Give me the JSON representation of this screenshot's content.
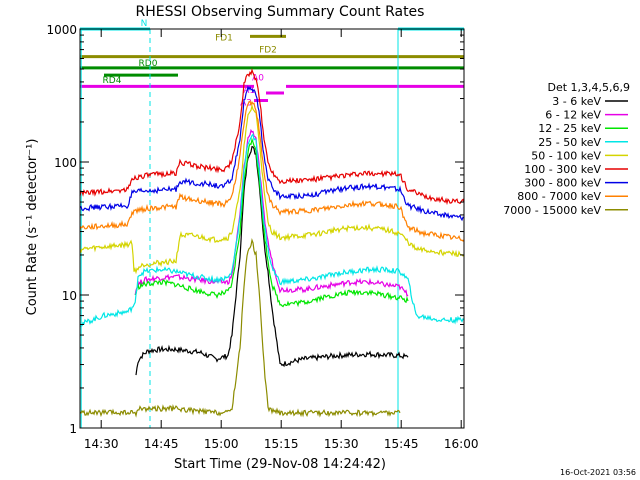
{
  "chart_data": {
    "type": "line",
    "title": "RHESSI Observing Summary Count Rates",
    "xlabel": "Start Time (29-Nov-08 14:24:42)",
    "ylabel": "Count Rate (s⁻¹ detector⁻¹)",
    "ylog": true,
    "ylim": [
      1,
      1000
    ],
    "xlim_min": [
      0,
      96
    ],
    "x_ticks": [
      {
        "t": 5.3,
        "label": "14:30"
      },
      {
        "t": 20.3,
        "label": "14:45"
      },
      {
        "t": 35.3,
        "label": "15:00"
      },
      {
        "t": 50.3,
        "label": "15:15"
      },
      {
        "t": 65.3,
        "label": "15:30"
      },
      {
        "t": 80.3,
        "label": "15:45"
      },
      {
        "t": 95.3,
        "label": "16:00"
      }
    ],
    "y_ticks": [
      {
        "v": 1,
        "label": "1"
      },
      {
        "v": 10,
        "label": "10"
      },
      {
        "v": 100,
        "label": "100"
      },
      {
        "v": 1000,
        "label": "1000"
      }
    ],
    "legend_title": "Det 1,3,4,5,6,9",
    "legend_position": "right",
    "series": [
      {
        "name": "3 - 6 keV",
        "color": "#000000",
        "points": [
          [
            14,
            2.5
          ],
          [
            14.5,
            3.2
          ],
          [
            15.5,
            3.5
          ],
          [
            17,
            3.8
          ],
          [
            20,
            3.9
          ],
          [
            24,
            3.9
          ],
          [
            30,
            3.7
          ],
          [
            34,
            3.3
          ],
          [
            37,
            3.5
          ],
          [
            38,
            5
          ],
          [
            40,
            20
          ],
          [
            41,
            60
          ],
          [
            42,
            110
          ],
          [
            43,
            130
          ],
          [
            44,
            115
          ],
          [
            45,
            60
          ],
          [
            46,
            25
          ],
          [
            47,
            15
          ],
          [
            48,
            8
          ],
          [
            50,
            3
          ],
          [
            56,
            3.3
          ],
          [
            64,
            3.5
          ],
          [
            72,
            3.6
          ],
          [
            80,
            3.5
          ],
          [
            82,
            3.4
          ]
        ]
      },
      {
        "name": "6 - 12 keV",
        "color": "#e600e6",
        "points": [
          [
            13.8,
            10.5
          ],
          [
            14.5,
            12
          ],
          [
            16,
            13
          ],
          [
            20,
            13.5
          ],
          [
            24,
            13.7
          ],
          [
            30,
            13
          ],
          [
            34,
            12.5
          ],
          [
            37,
            12.5
          ],
          [
            38,
            14
          ],
          [
            40,
            40
          ],
          [
            41,
            90
          ],
          [
            42,
            150
          ],
          [
            43,
            175
          ],
          [
            44,
            150
          ],
          [
            45,
            80
          ],
          [
            46,
            40
          ],
          [
            47,
            25
          ],
          [
            48,
            18
          ],
          [
            50,
            11
          ],
          [
            56,
            11
          ],
          [
            60,
            11.5
          ],
          [
            64,
            12
          ],
          [
            68,
            12.5
          ],
          [
            72,
            12.5
          ],
          [
            76,
            12
          ],
          [
            80,
            11.5
          ],
          [
            82,
            10
          ]
        ]
      },
      {
        "name": "12 - 25 keV",
        "color": "#00e600",
        "points": [
          [
            13.8,
            10
          ],
          [
            14.5,
            11.5
          ],
          [
            16,
            12
          ],
          [
            20,
            12.5
          ],
          [
            24,
            12
          ],
          [
            28,
            11
          ],
          [
            34,
            10
          ],
          [
            37,
            10.5
          ],
          [
            38,
            12
          ],
          [
            40,
            30
          ],
          [
            41,
            70
          ],
          [
            42,
            120
          ],
          [
            43,
            150
          ],
          [
            44,
            125
          ],
          [
            45,
            65
          ],
          [
            46,
            30
          ],
          [
            47,
            18
          ],
          [
            48,
            12
          ],
          [
            50,
            8.5
          ],
          [
            56,
            8.8
          ],
          [
            60,
            9.5
          ],
          [
            64,
            10
          ],
          [
            68,
            10.5
          ],
          [
            72,
            10.5
          ],
          [
            76,
            10
          ],
          [
            80,
            9.5
          ],
          [
            82,
            9
          ]
        ]
      },
      {
        "name": "25 - 50 keV",
        "color": "#00e6e6",
        "points": [
          [
            0,
            6
          ],
          [
            6,
            7
          ],
          [
            12,
            7.5
          ],
          [
            13.8,
            8.5
          ],
          [
            14.5,
            14
          ],
          [
            16,
            15
          ],
          [
            20,
            15.5
          ],
          [
            24,
            15
          ],
          [
            28,
            14
          ],
          [
            34,
            13
          ],
          [
            37,
            13.5
          ],
          [
            38,
            15
          ],
          [
            40,
            38
          ],
          [
            41,
            85
          ],
          [
            42,
            140
          ],
          [
            43,
            160
          ],
          [
            44,
            140
          ],
          [
            45,
            75
          ],
          [
            46,
            35
          ],
          [
            47,
            22
          ],
          [
            48,
            16
          ],
          [
            50,
            12.5
          ],
          [
            56,
            13
          ],
          [
            60,
            13.5
          ],
          [
            64,
            14.5
          ],
          [
            68,
            15
          ],
          [
            72,
            15.5
          ],
          [
            76,
            15.5
          ],
          [
            80,
            15
          ],
          [
            82,
            13
          ],
          [
            84,
            7
          ],
          [
            90,
            6.5
          ],
          [
            96,
            6.5
          ]
        ]
      },
      {
        "name": "50 - 100 keV",
        "color": "#d4d400",
        "points": [
          [
            0,
            22
          ],
          [
            6,
            23
          ],
          [
            12,
            24
          ],
          [
            13,
            25
          ],
          [
            13.5,
            15
          ],
          [
            14.5,
            16
          ],
          [
            16,
            17
          ],
          [
            20,
            17.5
          ],
          [
            24,
            18
          ],
          [
            25,
            28
          ],
          [
            28,
            28
          ],
          [
            34,
            26
          ],
          [
            37,
            27
          ],
          [
            38,
            30
          ],
          [
            40,
            60
          ],
          [
            41,
            130
          ],
          [
            42,
            220
          ],
          [
            43,
            260
          ],
          [
            44,
            230
          ],
          [
            45,
            130
          ],
          [
            46,
            60
          ],
          [
            47,
            35
          ],
          [
            48,
            30
          ],
          [
            50,
            27
          ],
          [
            56,
            28
          ],
          [
            60,
            29
          ],
          [
            64,
            31
          ],
          [
            68,
            32
          ],
          [
            72,
            32
          ],
          [
            76,
            31
          ],
          [
            80,
            29
          ],
          [
            82,
            25
          ],
          [
            84,
            22
          ],
          [
            90,
            21
          ],
          [
            96,
            20
          ]
        ]
      },
      {
        "name": "100 - 300 keV",
        "color": "#e60000",
        "points": [
          [
            0,
            58
          ],
          [
            6,
            60
          ],
          [
            12,
            62
          ],
          [
            13,
            75
          ],
          [
            15,
            78
          ],
          [
            18,
            80
          ],
          [
            22,
            82
          ],
          [
            24,
            82
          ],
          [
            25,
            100
          ],
          [
            28,
            95
          ],
          [
            32,
            90
          ],
          [
            36,
            88
          ],
          [
            38,
            100
          ],
          [
            40,
            200
          ],
          [
            41,
            380
          ],
          [
            42,
            460
          ],
          [
            43,
            470
          ],
          [
            44,
            420
          ],
          [
            45,
            280
          ],
          [
            46,
            150
          ],
          [
            47,
            100
          ],
          [
            48,
            85
          ],
          [
            50,
            72
          ],
          [
            56,
            73
          ],
          [
            60,
            75
          ],
          [
            64,
            78
          ],
          [
            68,
            80
          ],
          [
            72,
            82
          ],
          [
            76,
            82
          ],
          [
            80,
            80
          ],
          [
            82,
            62
          ],
          [
            86,
            55
          ],
          [
            90,
            52
          ],
          [
            96,
            50
          ]
        ]
      },
      {
        "name": "300 - 800 keV",
        "color": "#0000e6",
        "points": [
          [
            0,
            45
          ],
          [
            6,
            46
          ],
          [
            12,
            47
          ],
          [
            13,
            58
          ],
          [
            15,
            60
          ],
          [
            18,
            61
          ],
          [
            22,
            62
          ],
          [
            24,
            62
          ],
          [
            25,
            72
          ],
          [
            28,
            70
          ],
          [
            32,
            68
          ],
          [
            36,
            65
          ],
          [
            38,
            75
          ],
          [
            40,
            150
          ],
          [
            41,
            280
          ],
          [
            42,
            350
          ],
          [
            43,
            360
          ],
          [
            44,
            320
          ],
          [
            45,
            210
          ],
          [
            46,
            110
          ],
          [
            47,
            75
          ],
          [
            48,
            65
          ],
          [
            50,
            55
          ],
          [
            56,
            56
          ],
          [
            60,
            58
          ],
          [
            64,
            62
          ],
          [
            68,
            64
          ],
          [
            72,
            66
          ],
          [
            76,
            65
          ],
          [
            80,
            62
          ],
          [
            82,
            47
          ],
          [
            86,
            43
          ],
          [
            90,
            40
          ],
          [
            96,
            38
          ]
        ]
      },
      {
        "name": "800 - 7000 keV",
        "color": "#ff8000",
        "points": [
          [
            0,
            32
          ],
          [
            6,
            33
          ],
          [
            12,
            34
          ],
          [
            13,
            42
          ],
          [
            15,
            44
          ],
          [
            18,
            45
          ],
          [
            22,
            46
          ],
          [
            24,
            46
          ],
          [
            25,
            55
          ],
          [
            28,
            52
          ],
          [
            32,
            50
          ],
          [
            36,
            48
          ],
          [
            38,
            55
          ],
          [
            40,
            110
          ],
          [
            41,
            200
          ],
          [
            42,
            270
          ],
          [
            43,
            280
          ],
          [
            44,
            250
          ],
          [
            45,
            160
          ],
          [
            46,
            85
          ],
          [
            47,
            55
          ],
          [
            48,
            48
          ],
          [
            50,
            42
          ],
          [
            56,
            43
          ],
          [
            60,
            44
          ],
          [
            64,
            46
          ],
          [
            68,
            48
          ],
          [
            72,
            49
          ],
          [
            76,
            48
          ],
          [
            80,
            46
          ],
          [
            82,
            32
          ],
          [
            86,
            29
          ],
          [
            90,
            28
          ],
          [
            96,
            26
          ]
        ]
      },
      {
        "name": "7000 - 15000 keV",
        "color": "#8c8c00",
        "points": [
          [
            0,
            1.3
          ],
          [
            6,
            1.3
          ],
          [
            12,
            1.3
          ],
          [
            14,
            1.3
          ],
          [
            15,
            1.4
          ],
          [
            18,
            1.4
          ],
          [
            24,
            1.4
          ],
          [
            28,
            1.35
          ],
          [
            34,
            1.3
          ],
          [
            37,
            1.3
          ],
          [
            38,
            1.4
          ],
          [
            40,
            4
          ],
          [
            41,
            12
          ],
          [
            42,
            22
          ],
          [
            43,
            25
          ],
          [
            44,
            20
          ],
          [
            45,
            9
          ],
          [
            46,
            3
          ],
          [
            47,
            1.4
          ],
          [
            50,
            1.3
          ],
          [
            60,
            1.3
          ],
          [
            70,
            1.3
          ],
          [
            80,
            1.3
          ]
        ]
      }
    ],
    "attenuator_markers": [
      {
        "label": "A0",
        "t": 45.5
      },
      {
        "label": "A1",
        "t": 43.5
      },
      {
        "label": "A3",
        "t": 43.0
      }
    ],
    "flag_bars": [
      {
        "label": "N",
        "color": "#00e6e6",
        "segments": [
          [
            0,
            17.5
          ],
          [
            79.5,
            96
          ]
        ],
        "level": 1000
      },
      {
        "label": "FD1",
        "color": "#8c8c00",
        "segments": [
          [
            42.5,
            51.5
          ]
        ],
        "level": 880
      },
      {
        "label": "FD2",
        "color": "#8c8c00",
        "segments": [
          [
            0,
            96
          ]
        ],
        "level": 620
      },
      {
        "label": "RD0",
        "color": "#008c00",
        "segments": [
          [
            0,
            96
          ]
        ],
        "level": 510
      },
      {
        "label": "RD4",
        "color": "#008c00",
        "segments": [
          [
            6,
            24.5
          ]
        ],
        "level": 450
      },
      {
        "label": "A0",
        "color": "#e600e6",
        "segments": [
          [
            0,
            43.5
          ],
          [
            51.5,
            96
          ]
        ],
        "level": 370
      },
      {
        "label": "A1",
        "color": "#e600e6",
        "segments": [
          [
            46.5,
            51
          ]
        ],
        "level": 330
      },
      {
        "label": "A3",
        "color": "#e600e6",
        "segments": [
          [
            43.5,
            47
          ]
        ],
        "level": 290
      }
    ],
    "vlines": [
      {
        "t": 0.3,
        "color": "#00e6e6",
        "style": "solid"
      },
      {
        "t": 17.5,
        "color": "#00e6e6",
        "style": "dashed"
      },
      {
        "t": 79.5,
        "color": "#00e6e6",
        "style": "solid"
      },
      {
        "t": 96,
        "color": "#00e6e6",
        "style": "dashed"
      }
    ],
    "grid": false
  },
  "footer_timestamp": "16-Oct-2021 03:56"
}
